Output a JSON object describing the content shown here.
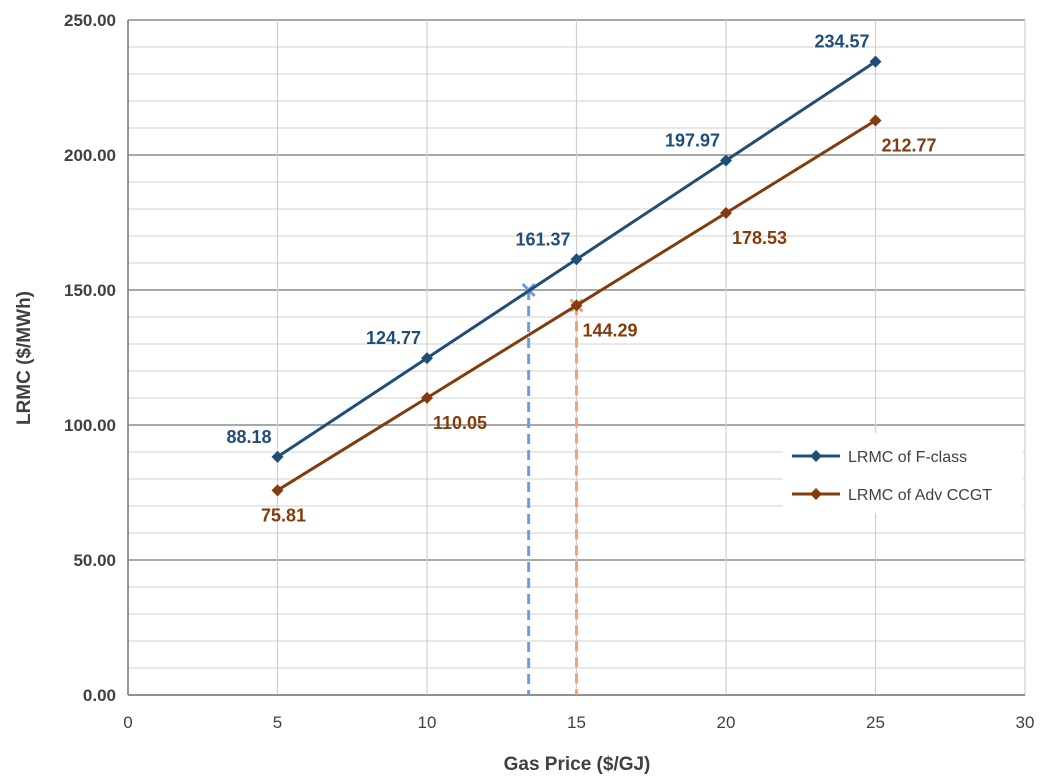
{
  "chart_data": {
    "type": "line",
    "title": "",
    "xlabel": "Gas Price ($/GJ)",
    "ylabel": "LRMC ($/MWh)",
    "xlim": [
      0,
      30
    ],
    "ylim": [
      0,
      250
    ],
    "x_ticks": [
      "0",
      "5",
      "10",
      "15",
      "20",
      "25",
      "30"
    ],
    "y_ticks": [
      "0.00",
      "50.00",
      "100.00",
      "150.00",
      "200.00",
      "250.00"
    ],
    "grid": true,
    "legend_position": "right",
    "x": [
      5,
      10,
      15,
      20,
      25
    ],
    "series": [
      {
        "name": "LRMC of F-class",
        "color": "#1f4e79",
        "values": [
          88.18,
          124.77,
          161.37,
          197.97,
          234.57
        ],
        "labels": [
          "88.18",
          "124.77",
          "161.37",
          "197.97",
          "234.57"
        ]
      },
      {
        "name": "LRMC of Adv CCGT",
        "color": "#843c0c",
        "values": [
          75.81,
          110.05,
          144.29,
          178.53,
          212.77
        ],
        "labels": [
          "75.81",
          "110.05",
          "144.29",
          "178.53",
          "212.77"
        ]
      }
    ],
    "markers": [
      {
        "x": 13.4,
        "y": 150,
        "color": "#6f9be0",
        "style": "cross-with-dashed-drop"
      },
      {
        "x": 15,
        "y": 144.29,
        "color": "#f4a26b",
        "style": "cross-with-dashed-drop"
      }
    ]
  }
}
